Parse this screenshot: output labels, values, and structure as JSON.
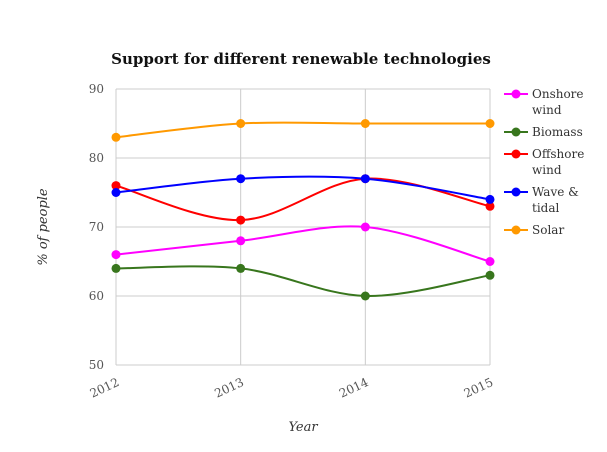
{
  "chart_data": {
    "type": "line",
    "title": "Support for different renewable technologies",
    "xlabel": "Year",
    "ylabel": "% of people",
    "categories": [
      "2012",
      "2013",
      "2014",
      "2015"
    ],
    "ylim": [
      50,
      90
    ],
    "yticks": [
      "50",
      "60",
      "70",
      "80",
      "90"
    ],
    "grid": true,
    "legend_position": "right",
    "series": [
      {
        "name": "Onshore wind",
        "legend_lines": [
          "Onshore",
          "wind"
        ],
        "color": "#ff00ff",
        "values": [
          66,
          68,
          70,
          65
        ]
      },
      {
        "name": "Biomass",
        "legend_lines": [
          "Biomass"
        ],
        "color": "#38761d",
        "values": [
          64,
          64,
          60,
          63
        ]
      },
      {
        "name": "Offshore wind",
        "legend_lines": [
          "Offshore",
          "wind"
        ],
        "color": "#ff0000",
        "values": [
          76,
          71,
          77,
          73
        ]
      },
      {
        "name": "Wave & tidal",
        "legend_lines": [
          "Wave &",
          "tidal"
        ],
        "color": "#0000ff",
        "values": [
          75,
          77,
          77,
          74
        ]
      },
      {
        "name": "Solar",
        "legend_lines": [
          "Solar"
        ],
        "color": "#ff9900",
        "values": [
          83,
          85,
          85,
          85
        ]
      }
    ]
  }
}
